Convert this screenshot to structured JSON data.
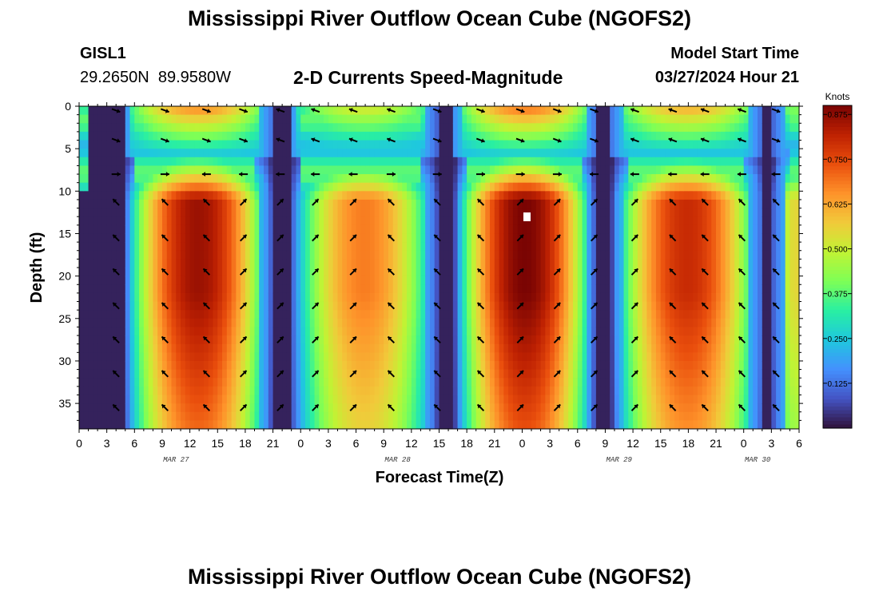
{
  "title": "Mississippi River Outflow Ocean Cube (NGOFS2)",
  "title_bottom": "Mississippi River Outflow Ocean Cube (NGOFS2)",
  "station": {
    "id": "GISL1",
    "coords": "29.2650N  89.9580W"
  },
  "subtitle": "2-D Currents Speed-Magnitude",
  "model": {
    "label": "Model Start Time",
    "time": "03/27/2024 Hour 21"
  },
  "colors": {
    "scale": [
      "#30123b",
      "#4454c4",
      "#4490fe",
      "#1fc8de",
      "#29efa2",
      "#7dff56",
      "#c1f334",
      "#f1ca3a",
      "#fe922a",
      "#ea4f0d",
      "#be2102",
      "#7a0403"
    ]
  },
  "chart_data": {
    "type": "heatmap",
    "title": "2-D Currents Speed-Magnitude",
    "xlabel": "Forecast Time(Z)",
    "ylabel": "Depth (ft)",
    "colorbar_title": "Knots",
    "colorbar_ticks": [
      0.125,
      0.25,
      0.375,
      0.5,
      0.625,
      0.75,
      0.875
    ],
    "colorbar_range": [
      0,
      0.9
    ],
    "ylim": [
      0,
      38
    ],
    "yticks": [
      0,
      5,
      10,
      15,
      20,
      25,
      30,
      35
    ],
    "x_range_hours": [
      0,
      78
    ],
    "x_ticks": [
      {
        "h": 0,
        "label": "0"
      },
      {
        "h": 3,
        "label": "3"
      },
      {
        "h": 6,
        "label": "6"
      },
      {
        "h": 9,
        "label": "9"
      },
      {
        "h": 12,
        "label": "12"
      },
      {
        "h": 15,
        "label": "15"
      },
      {
        "h": 18,
        "label": "18"
      },
      {
        "h": 21,
        "label": "21"
      },
      {
        "h": 24,
        "label": "0"
      },
      {
        "h": 27,
        "label": "3"
      },
      {
        "h": 30,
        "label": "6"
      },
      {
        "h": 33,
        "label": "9"
      },
      {
        "h": 36,
        "label": "12"
      },
      {
        "h": 39,
        "label": "15"
      },
      {
        "h": 42,
        "label": "18"
      },
      {
        "h": 45,
        "label": "21"
      },
      {
        "h": 48,
        "label": "0"
      },
      {
        "h": 51,
        "label": "3"
      },
      {
        "h": 54,
        "label": "6"
      },
      {
        "h": 57,
        "label": "9"
      },
      {
        "h": 60,
        "label": "12"
      },
      {
        "h": 63,
        "label": "15"
      },
      {
        "h": 66,
        "label": "18"
      },
      {
        "h": 69,
        "label": "21"
      },
      {
        "h": 72,
        "label": "0"
      },
      {
        "h": 75,
        "label": "3"
      },
      {
        "h": 78,
        "label": "6"
      }
    ],
    "date_labels": [
      {
        "h": 10.5,
        "label": "MAR 27"
      },
      {
        "h": 34.5,
        "label": "MAR 28"
      },
      {
        "h": 58.5,
        "label": "MAR 29"
      },
      {
        "h": 73.5,
        "label": "MAR 30"
      }
    ],
    "high_speed_bands": [
      {
        "start_h": 7.0,
        "end_h": 18.8,
        "peak": 0.86
      },
      {
        "start_h": 25.0,
        "end_h": 36.8,
        "peak": 0.68
      },
      {
        "start_h": 42.8,
        "end_h": 53.8,
        "peak": 0.9
      },
      {
        "start_h": 59.8,
        "end_h": 72.0,
        "peak": 0.8
      },
      {
        "start_h": 77.3,
        "end_h": 78.0,
        "peak": 0.55
      }
    ],
    "slack_times_h": [
      3.7,
      21.7,
      39.3,
      56.8,
      74.6
    ],
    "arrow_rows_ft": [
      0.5,
      4,
      8,
      11.3,
      15.5,
      19.5,
      23.5,
      27.5,
      31.5,
      35.5
    ],
    "arrow_cols_h": [
      4.0,
      9.3,
      13.8,
      17.8,
      21.8,
      25.6,
      29.7,
      33.8,
      38.8,
      43.5,
      47.8,
      51.8,
      55.8,
      60.2,
      64.3,
      67.8,
      71.8,
      75.5
    ]
  },
  "axes": {
    "xlabel": "Forecast Time(Z)",
    "ylabel": "Depth (ft)",
    "colorbar_title": "Knots"
  }
}
